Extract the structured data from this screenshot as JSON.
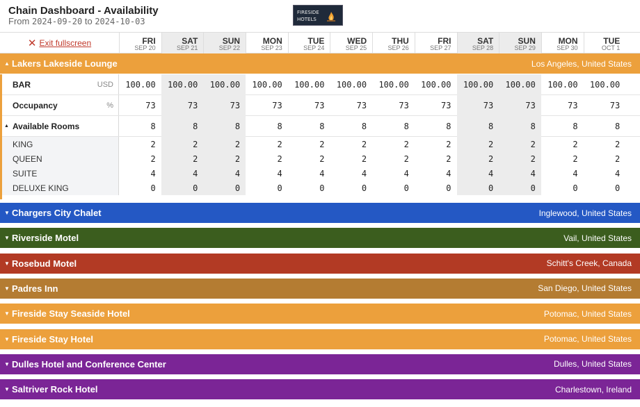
{
  "header": {
    "title": "Chain Dashboard - Availability",
    "from_label": "From",
    "from_date": "2024-09-20",
    "to_label": "to",
    "to_date": "2024-10-03",
    "logo_line1": "FIRESIDE",
    "logo_line2": "HOTELS"
  },
  "toolbar": {
    "exit_label": "Exit fullscreen"
  },
  "dates": [
    {
      "dow": "FRI",
      "date": "SEP 20",
      "weekend": false
    },
    {
      "dow": "SAT",
      "date": "SEP 21",
      "weekend": true
    },
    {
      "dow": "SUN",
      "date": "SEP 22",
      "weekend": true
    },
    {
      "dow": "MON",
      "date": "SEP 23",
      "weekend": false
    },
    {
      "dow": "TUE",
      "date": "SEP 24",
      "weekend": false
    },
    {
      "dow": "WED",
      "date": "SEP 25",
      "weekend": false
    },
    {
      "dow": "THU",
      "date": "SEP 26",
      "weekend": false
    },
    {
      "dow": "FRI",
      "date": "SEP 27",
      "weekend": false
    },
    {
      "dow": "SAT",
      "date": "SEP 28",
      "weekend": true
    },
    {
      "dow": "SUN",
      "date": "SEP 29",
      "weekend": true
    },
    {
      "dow": "MON",
      "date": "SEP 30",
      "weekend": false
    },
    {
      "dow": "TUE",
      "date": "OCT 1",
      "weekend": false
    }
  ],
  "expanded_hotel": {
    "name": "Lakers Lakeside Lounge",
    "location": "Los Angeles, United States",
    "color": "#eca03c",
    "rows": [
      {
        "label": "BAR",
        "unit": "USD",
        "bold": true,
        "values": [
          "100.00",
          "100.00",
          "100.00",
          "100.00",
          "100.00",
          "100.00",
          "100.00",
          "100.00",
          "100.00",
          "100.00",
          "100.00",
          "100.00"
        ]
      },
      {
        "label": "Occupancy",
        "unit": "%",
        "bold": true,
        "values": [
          "73",
          "73",
          "73",
          "73",
          "73",
          "73",
          "73",
          "73",
          "73",
          "73",
          "73",
          "73"
        ]
      },
      {
        "label": "Available Rooms",
        "unit": "",
        "bold": true,
        "values": [
          "8",
          "8",
          "8",
          "8",
          "8",
          "8",
          "8",
          "8",
          "8",
          "8",
          "8",
          "8"
        ]
      },
      {
        "label": "KING",
        "unit": "",
        "bold": false,
        "values": [
          "2",
          "2",
          "2",
          "2",
          "2",
          "2",
          "2",
          "2",
          "2",
          "2",
          "2",
          "2"
        ]
      },
      {
        "label": "QUEEN",
        "unit": "",
        "bold": false,
        "values": [
          "2",
          "2",
          "2",
          "2",
          "2",
          "2",
          "2",
          "2",
          "2",
          "2",
          "2",
          "2"
        ]
      },
      {
        "label": "SUITE",
        "unit": "",
        "bold": false,
        "values": [
          "4",
          "4",
          "4",
          "4",
          "4",
          "4",
          "4",
          "4",
          "4",
          "4",
          "4",
          "4"
        ]
      },
      {
        "label": "DELUXE KING",
        "unit": "",
        "bold": false,
        "values": [
          "0",
          "0",
          "0",
          "0",
          "0",
          "0",
          "0",
          "0",
          "0",
          "0",
          "0",
          "0"
        ]
      }
    ]
  },
  "hotels": [
    {
      "name": "Chargers City Chalet",
      "location": "Inglewood, United States",
      "color": "#2458c4"
    },
    {
      "name": "Riverside Motel",
      "location": "Vail, United States",
      "color": "#3b5d1e"
    },
    {
      "name": "Rosebud Motel",
      "location": "Schitt's Creek, Canada",
      "color": "#b23a24"
    },
    {
      "name": "Padres Inn",
      "location": "San Diego, United States",
      "color": "#b47c32"
    },
    {
      "name": "Fireside Stay Seaside Hotel",
      "location": "Potomac, United States",
      "color": "#eca03c"
    },
    {
      "name": "Fireside Stay Hotel",
      "location": "Potomac, United States",
      "color": "#eca03c"
    },
    {
      "name": "Dulles Hotel and Conference Center",
      "location": "Dulles, United States",
      "color": "#7b2596"
    },
    {
      "name": "Saltriver Rock Hotel",
      "location": "Charlestown, Ireland",
      "color": "#7b2596"
    }
  ]
}
